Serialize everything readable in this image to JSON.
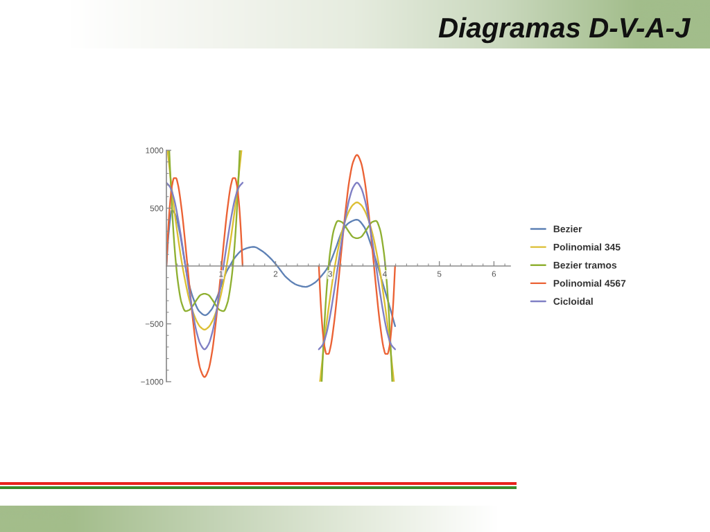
{
  "chart_data": {
    "type": "line",
    "title": "Diagramas D-V-A-J",
    "xlim": [
      0,
      6.3
    ],
    "ylim": [
      -1000,
      1000
    ],
    "xticks": [
      {
        "value": 0.2,
        "label": null
      },
      {
        "value": 0.4,
        "label": null
      },
      {
        "value": 0.6,
        "label": null
      },
      {
        "value": 0.8,
        "label": null
      },
      1,
      {
        "value": 1.2,
        "label": null
      },
      {
        "value": 1.4,
        "label": null
      },
      {
        "value": 1.6,
        "label": null
      },
      {
        "value": 1.8,
        "label": null
      },
      2,
      {
        "value": 2.2,
        "label": null
      },
      {
        "value": 2.4,
        "label": null
      },
      {
        "value": 2.6,
        "label": null
      },
      {
        "value": 2.8,
        "label": null
      },
      3,
      {
        "value": 3.2,
        "label": null
      },
      {
        "value": 3.4,
        "label": null
      },
      {
        "value": 3.6,
        "label": null
      },
      {
        "value": 3.8,
        "label": null
      },
      4,
      {
        "value": 4.2,
        "label": null
      },
      {
        "value": 4.4,
        "label": null
      },
      {
        "value": 4.6,
        "label": null
      },
      {
        "value": 4.8,
        "label": null
      },
      5,
      {
        "value": 5.2,
        "label": null
      },
      {
        "value": 5.4,
        "label": null
      },
      {
        "value": 5.6,
        "label": null
      },
      {
        "value": 5.8,
        "label": null
      },
      6,
      {
        "value": 6.2,
        "label": null
      }
    ],
    "yticks": [
      {
        "value": -1000,
        "label": "−1000"
      },
      {
        "value": -900,
        "label": null
      },
      {
        "value": -800,
        "label": null
      },
      {
        "value": -700,
        "label": null
      },
      {
        "value": -600,
        "label": null
      },
      {
        "value": -500,
        "label": "−500"
      },
      {
        "value": -400,
        "label": null
      },
      {
        "value": -300,
        "label": null
      },
      {
        "value": -200,
        "label": null
      },
      {
        "value": -100,
        "label": null
      },
      {
        "value": 100,
        "label": null
      },
      {
        "value": 200,
        "label": null
      },
      {
        "value": 300,
        "label": null
      },
      {
        "value": 400,
        "label": null
      },
      500,
      {
        "value": 600,
        "label": null
      },
      {
        "value": 700,
        "label": null
      },
      {
        "value": 800,
        "label": null
      },
      {
        "value": 900,
        "label": null
      },
      1000
    ],
    "legend": "right",
    "marker": "none",
    "line_style": "solid",
    "series": [
      {
        "name": "Bezier",
        "color": "#5e81b5",
        "x": [
          0,
          0.04,
          0.1,
          0.16,
          0.24,
          0.32,
          0.4,
          0.5,
          0.6,
          0.71,
          0.82,
          0.92,
          1.02,
          1.1,
          1.16,
          1.25,
          1.4,
          1.6,
          1.75,
          1.9,
          2.03,
          2.2,
          2.4,
          2.55,
          2.7,
          2.85,
          2.97,
          3.1,
          3.22,
          3.35,
          3.49,
          3.62,
          3.75,
          3.87,
          3.97,
          4.07,
          4.19
        ],
        "values": [
          0,
          280,
          480,
          450,
          300,
          80,
          -130,
          -290,
          -390,
          -425,
          -380,
          -280,
          -150,
          -50,
          0,
          70,
          140,
          165,
          130,
          70,
          0,
          -100,
          -165,
          -180,
          -150,
          -80,
          0,
          150,
          300,
          375,
          400,
          340,
          180,
          0,
          -160,
          -320,
          -520
        ]
      },
      {
        "name": "Polinomial 345",
        "color": "#dcbf33",
        "x": [
          0.021,
          0.07,
          0.14,
          0.209,
          0.279,
          0.349,
          0.419,
          0.489,
          0.558,
          0.628,
          0.698,
          0.768,
          0.838,
          0.907,
          0.977,
          1.047,
          1.117,
          1.187,
          1.256,
          1.326,
          1.375,
          2.0,
          2.814,
          2.863,
          2.933,
          3.002,
          3.072,
          3.142,
          3.212,
          3.282,
          3.351,
          3.421,
          3.491,
          3.561,
          3.631,
          3.7,
          3.77,
          3.84,
          3.91,
          3.98,
          4.049,
          4.119,
          4.168
        ],
        "values": [
          1000,
          790,
          500,
          260,
          40,
          -140,
          -290,
          -400,
          -480,
          -530,
          -550,
          -530,
          -480,
          -400,
          -290,
          -140,
          40,
          260,
          500,
          790,
          1000,
          null,
          -1000,
          -790,
          -500,
          -260,
          -40,
          140,
          290,
          400,
          480,
          530,
          550,
          530,
          480,
          400,
          290,
          140,
          -40,
          -260,
          -500,
          -790,
          -1000
        ]
      },
      {
        "name": "Bezier tramos",
        "color": "#8fb032",
        "x": [
          0.052,
          0.07,
          0.105,
          0.14,
          0.175,
          0.209,
          0.279,
          0.349,
          0.419,
          0.489,
          0.558,
          0.628,
          0.698,
          0.768,
          0.838,
          0.907,
          0.977,
          1.047,
          1.117,
          1.187,
          1.222,
          1.256,
          1.291,
          1.326,
          1.344,
          2.0,
          2.845,
          2.863,
          2.898,
          2.933,
          2.968,
          3.002,
          3.072,
          3.142,
          3.212,
          3.282,
          3.351,
          3.421,
          3.491,
          3.561,
          3.631,
          3.7,
          3.77,
          3.84,
          3.91,
          3.98,
          4.015,
          4.049,
          4.084,
          4.119,
          4.137
        ],
        "values": [
          1000,
          810,
          480,
          220,
          20,
          -130,
          -320,
          -390,
          -380,
          -340,
          -290,
          -250,
          -240,
          -250,
          -290,
          -340,
          -380,
          -390,
          -320,
          -130,
          20,
          220,
          480,
          810,
          1000,
          null,
          -1000,
          -810,
          -480,
          -220,
          -20,
          130,
          320,
          390,
          380,
          340,
          290,
          250,
          240,
          250,
          290,
          340,
          380,
          390,
          320,
          130,
          -20,
          -220,
          -480,
          -810,
          -1000
        ]
      },
      {
        "name": "Polinomial 4567",
        "color": "#eb6235",
        "x": [
          0,
          0.035,
          0.07,
          0.105,
          0.14,
          0.175,
          0.209,
          0.279,
          0.349,
          0.419,
          0.489,
          0.558,
          0.628,
          0.698,
          0.768,
          0.838,
          0.907,
          0.977,
          1.047,
          1.117,
          1.187,
          1.222,
          1.256,
          1.291,
          1.326,
          1.361,
          1.396,
          2.0,
          2.793,
          2.828,
          2.863,
          2.898,
          2.933,
          2.968,
          3.002,
          3.072,
          3.142,
          3.212,
          3.282,
          3.351,
          3.421,
          3.491,
          3.561,
          3.631,
          3.7,
          3.77,
          3.84,
          3.91,
          3.98,
          4.015,
          4.049,
          4.084,
          4.119,
          4.154,
          4.189
        ],
        "values": [
          0,
          330,
          560,
          700,
          760,
          760,
          710,
          490,
          180,
          -160,
          -480,
          -740,
          -900,
          -960,
          -900,
          -740,
          -480,
          -160,
          180,
          490,
          710,
          760,
          760,
          700,
          560,
          330,
          0,
          null,
          0,
          -330,
          -560,
          -700,
          -760,
          -760,
          -710,
          -490,
          -180,
          160,
          480,
          740,
          900,
          960,
          900,
          740,
          480,
          160,
          -180,
          -490,
          -710,
          -760,
          -760,
          -700,
          -560,
          -330,
          0
        ]
      },
      {
        "name": "Cicloidal",
        "color": "#7f7fc4",
        "x": [
          0,
          0.07,
          0.14,
          0.209,
          0.279,
          0.349,
          0.419,
          0.489,
          0.558,
          0.628,
          0.698,
          0.768,
          0.838,
          0.907,
          0.977,
          1.047,
          1.117,
          1.187,
          1.256,
          1.326,
          1.396,
          2.0,
          2.793,
          2.863,
          2.933,
          3.002,
          3.072,
          3.142,
          3.212,
          3.282,
          3.351,
          3.421,
          3.491,
          3.561,
          3.631,
          3.7,
          3.77,
          3.84,
          3.91,
          3.98,
          4.049,
          4.119,
          4.189
        ],
        "values": [
          720,
          680,
          580,
          420,
          220,
          0,
          -220,
          -420,
          -580,
          -680,
          -720,
          -680,
          -580,
          -420,
          -220,
          0,
          220,
          420,
          580,
          680,
          720,
          null,
          -720,
          -680,
          -580,
          -420,
          -220,
          0,
          220,
          420,
          580,
          680,
          720,
          680,
          580,
          420,
          220,
          0,
          -220,
          -420,
          -580,
          -680,
          -720
        ]
      }
    ]
  }
}
